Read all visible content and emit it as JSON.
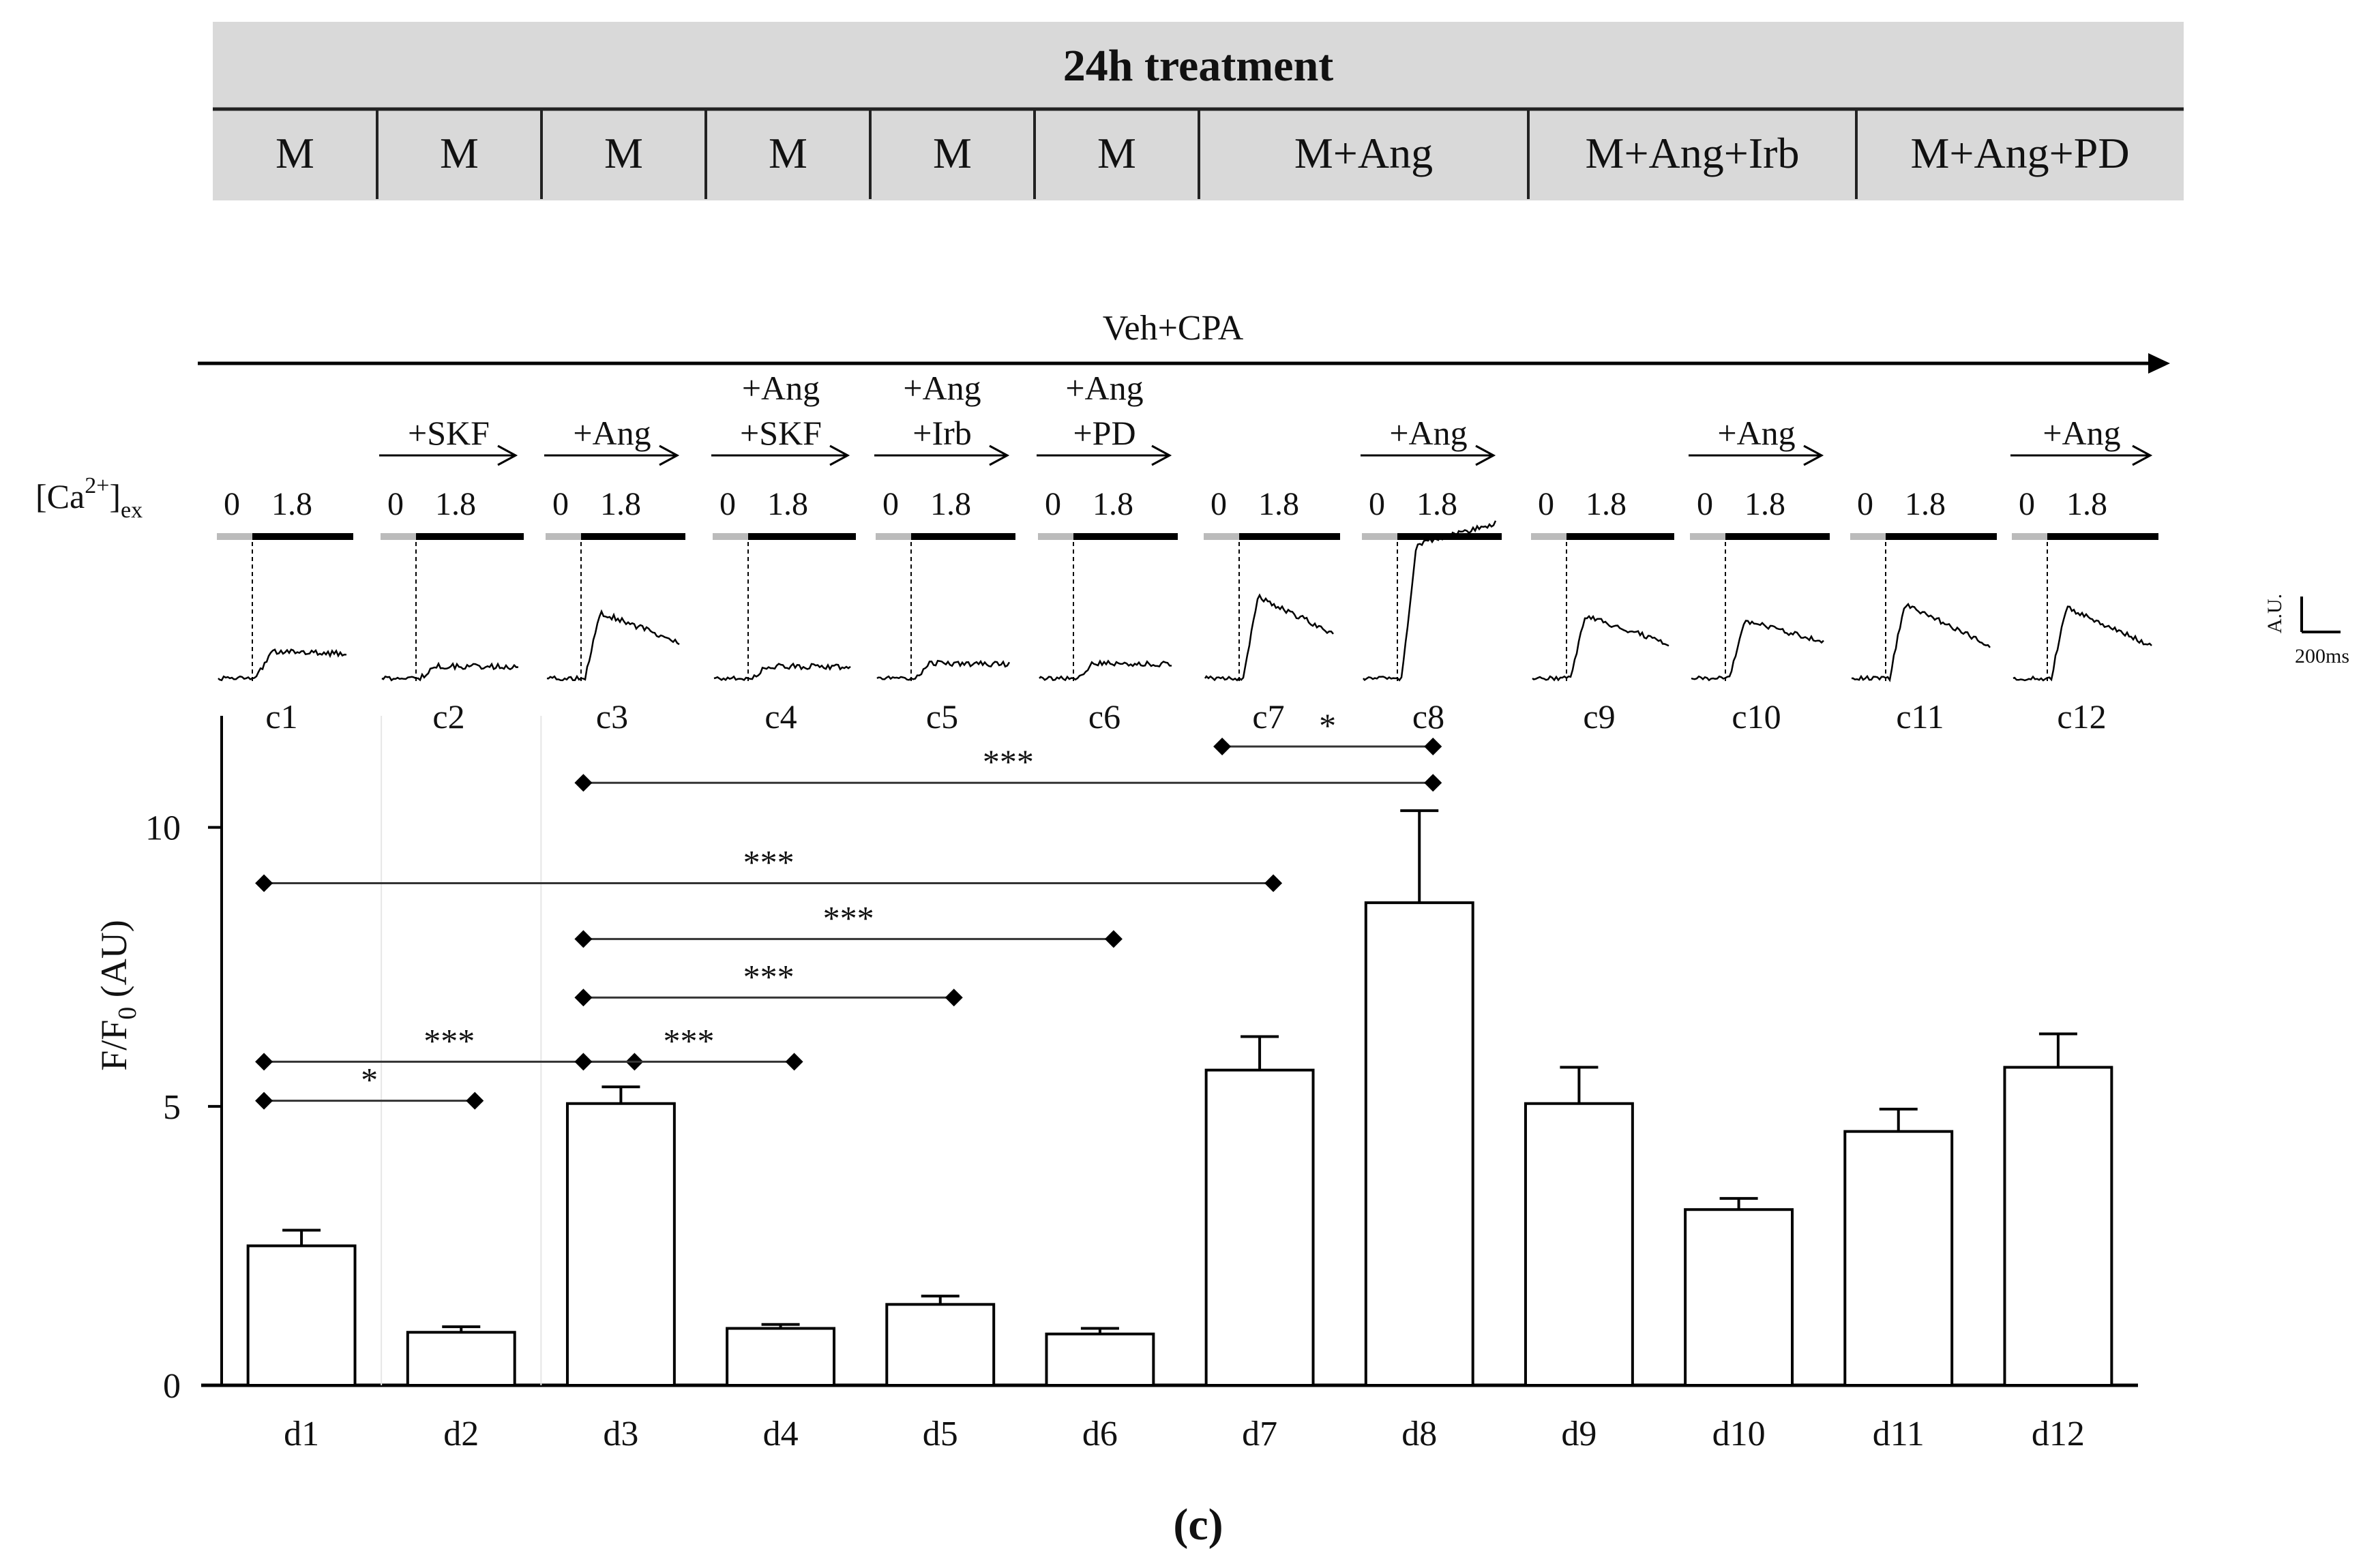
{
  "treatment_table": {
    "title": "24h treatment",
    "cells": [
      "M",
      "M",
      "M",
      "M",
      "M",
      "M",
      "M+Ang",
      "M+Ang+Irb",
      "M+Ang+PD"
    ]
  },
  "protocol": {
    "main_label": "Veh+CPA",
    "ca_label_base": "[Ca",
    "ca_label_sup": "2+",
    "ca_label_end": "]",
    "ca_label_sub": "ex",
    "conc_low": "0",
    "conc_high": "1.8",
    "additions": [
      {
        "panel": "c2",
        "lines": [
          "+SKF"
        ]
      },
      {
        "panel": "c3",
        "lines": [
          "+Ang"
        ]
      },
      {
        "panel": "c4",
        "lines": [
          "+Ang",
          "+SKF"
        ]
      },
      {
        "panel": "c5",
        "lines": [
          "+Ang",
          "+Irb"
        ]
      },
      {
        "panel": "c6",
        "lines": [
          "+Ang",
          "+PD"
        ]
      },
      {
        "panel": "c8",
        "lines": [
          "+Ang"
        ]
      },
      {
        "panel": "c10",
        "lines": [
          "+Ang"
        ]
      },
      {
        "panel": "c12",
        "lines": [
          "+Ang"
        ]
      }
    ],
    "trace_labels": [
      "c1",
      "c2",
      "c3",
      "c4",
      "c5",
      "c6",
      "c7",
      "c8",
      "c9",
      "c10",
      "c11",
      "c12"
    ],
    "scale_bar": {
      "y_label": "A.U.",
      "x_label": "200ms"
    }
  },
  "chart_data": {
    "type": "bar",
    "categories": [
      "d1",
      "d2",
      "d3",
      "d4",
      "d5",
      "d6",
      "d7",
      "d8",
      "d9",
      "d10",
      "d11",
      "d12"
    ],
    "values": [
      2.5,
      0.95,
      5.05,
      1.02,
      1.45,
      0.92,
      5.65,
      8.65,
      5.05,
      3.15,
      4.55,
      5.7
    ],
    "errors": [
      0.28,
      0.1,
      0.3,
      0.07,
      0.15,
      0.1,
      0.6,
      1.65,
      0.65,
      0.2,
      0.4,
      0.6
    ],
    "ylabel_main": "F/F",
    "ylabel_sub": "0",
    "ylabel_end": " (AU)",
    "ylim": [
      0,
      12
    ],
    "yticks": [
      0,
      5,
      10
    ],
    "significance": [
      {
        "from": "d1",
        "to": "d2",
        "y": 5.1,
        "label": "*"
      },
      {
        "from": "d1",
        "to": "d3",
        "y": 5.8,
        "label": "***"
      },
      {
        "from": "d3",
        "to": "d4",
        "y": 5.8,
        "label": "***"
      },
      {
        "from": "d3",
        "to": "d5",
        "y": 6.95,
        "label": "***"
      },
      {
        "from": "d3",
        "to": "d6",
        "y": 8.0,
        "label": "***"
      },
      {
        "from": "d1",
        "to": "d7",
        "y": 9.0,
        "label": "***"
      },
      {
        "from": "d3",
        "to": "d8",
        "y": 10.8,
        "label": "***"
      },
      {
        "from": "d7",
        "to": "d8",
        "y": 11.45,
        "label": "*"
      }
    ]
  },
  "panel_label": "(c)"
}
